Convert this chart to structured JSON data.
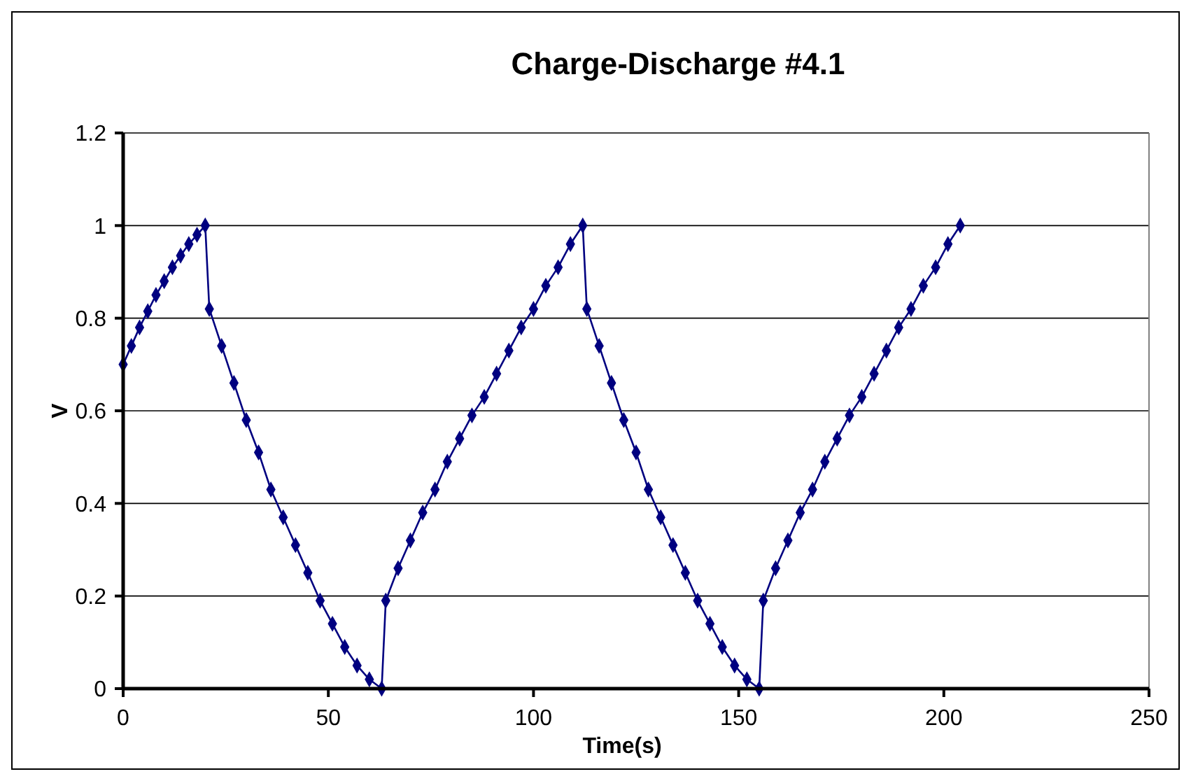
{
  "chart_data": {
    "type": "line",
    "title": "Charge-Discharge #4.1",
    "xlabel": "Time(s)",
    "ylabel": "V",
    "x": [
      0,
      2,
      4,
      6,
      8,
      10,
      12,
      14,
      16,
      18,
      20,
      21,
      24,
      27,
      30,
      33,
      36,
      39,
      42,
      45,
      48,
      51,
      54,
      57,
      60,
      63,
      64,
      67,
      70,
      73,
      76,
      79,
      82,
      85,
      88,
      91,
      94,
      97,
      100,
      103,
      106,
      109,
      112,
      113,
      116,
      119,
      122,
      125,
      128,
      131,
      134,
      137,
      140,
      143,
      146,
      149,
      152,
      155,
      156,
      159,
      162,
      165,
      168,
      171,
      174,
      177,
      180,
      183,
      186,
      189,
      192,
      195,
      198,
      201,
      204
    ],
    "series": [
      {
        "color": "#000080",
        "values": [
          0.7,
          0.74,
          0.78,
          0.815,
          0.85,
          0.88,
          0.91,
          0.935,
          0.96,
          0.98,
          1.0,
          0.82,
          0.74,
          0.66,
          0.58,
          0.51,
          0.43,
          0.37,
          0.31,
          0.25,
          0.19,
          0.14,
          0.09,
          0.05,
          0.02,
          0,
          0.19,
          0.26,
          0.32,
          0.38,
          0.43,
          0.49,
          0.54,
          0.59,
          0.63,
          0.68,
          0.73,
          0.78,
          0.82,
          0.87,
          0.91,
          0.96,
          1.0,
          0.82,
          0.74,
          0.66,
          0.58,
          0.51,
          0.43,
          0.37,
          0.31,
          0.25,
          0.19,
          0.14,
          0.09,
          0.05,
          0.02,
          0,
          0.19,
          0.26,
          0.32,
          0.38,
          0.43,
          0.49,
          0.54,
          0.59,
          0.63,
          0.68,
          0.73,
          0.78,
          0.82,
          0.87,
          0.91,
          0.96,
          1.0
        ]
      }
    ],
    "xlim": [
      0,
      250
    ],
    "xticks": [
      0,
      50,
      100,
      150,
      200,
      250
    ],
    "ylim": [
      0,
      1.2
    ],
    "yticks": [
      0,
      0.2,
      0.4,
      0.6,
      0.8,
      1,
      1.2
    ],
    "grid": "y",
    "marker": "diamond",
    "line_style": "solid"
  }
}
